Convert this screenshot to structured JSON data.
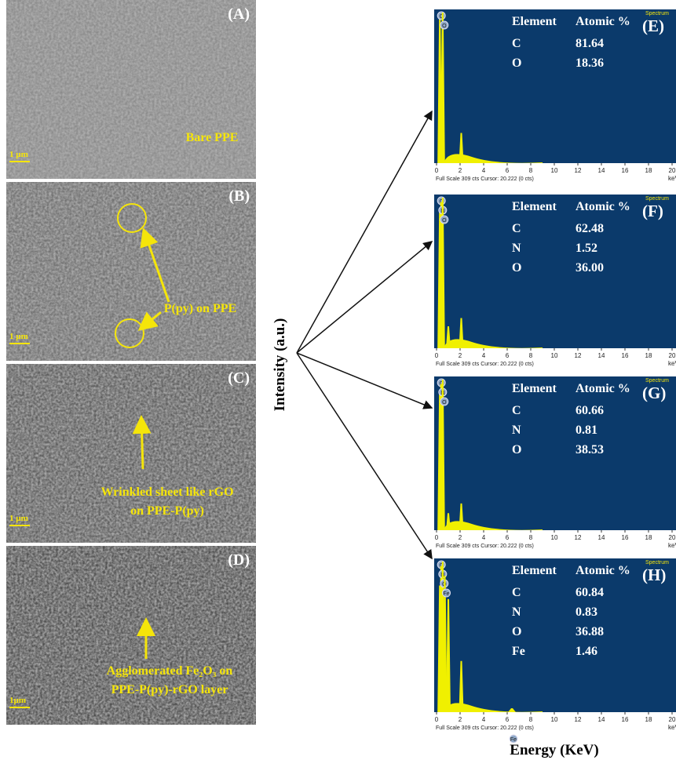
{
  "sem_panels": [
    {
      "label": "(A)",
      "scale": "1 µm",
      "caption": [
        "Bare PPE"
      ]
    },
    {
      "label": "(B)",
      "scale": "1 µm",
      "caption": [
        "P(py) on PPE"
      ]
    },
    {
      "label": "(C)",
      "scale": "1 µm",
      "caption": [
        "Wrinkled sheet like rGO",
        "on PPE-P(py)"
      ]
    },
    {
      "label": "(D)",
      "scale": "1µm",
      "caption": [
        "Agglomerated Fe₂O₃ on",
        "PPE-P(py)-rGO layer"
      ]
    }
  ],
  "y_axis_label": "Intensity (a.u.)",
  "x_axis_label": "Energy (KeV)",
  "spectrum_axis": {
    "xlim": [
      0,
      20
    ],
    "xticks": [
      0,
      2,
      4,
      6,
      8,
      10,
      12,
      14,
      16,
      18,
      20
    ],
    "unit": "keV",
    "footer": "Full Scale 309 cts Cursor: 20.222  (0 cts)",
    "tag": "Spectrum"
  },
  "spectra": [
    {
      "label": "(E)",
      "table": {
        "header": [
          "Element",
          "Atomic %"
        ],
        "rows": [
          [
            "C",
            "81.64"
          ],
          [
            "O",
            "18.36"
          ]
        ]
      },
      "peaks": [
        {
          "x": 0.28,
          "y": 300,
          "label": "C"
        },
        {
          "x": 0.52,
          "y": 309,
          "label": "O"
        },
        {
          "x": 2.1,
          "y": 62
        }
      ]
    },
    {
      "label": "(F)",
      "table": {
        "header": [
          "Element",
          "Atomic %"
        ],
        "rows": [
          [
            "C",
            "62.48"
          ],
          [
            "N",
            "1.52"
          ],
          [
            "O",
            "36.00"
          ]
        ]
      },
      "peaks": [
        {
          "x": 0.28,
          "y": 280,
          "label": "C"
        },
        {
          "x": 0.39,
          "y": 300,
          "label": "N"
        },
        {
          "x": 0.52,
          "y": 309,
          "label": "O"
        },
        {
          "x": 1.0,
          "y": 45
        },
        {
          "x": 2.1,
          "y": 62
        }
      ]
    },
    {
      "label": "(G)",
      "table": {
        "header": [
          "Element",
          "Atomic %"
        ],
        "rows": [
          [
            "C",
            "60.66"
          ],
          [
            "N",
            "0.81"
          ],
          [
            "O",
            "38.53"
          ]
        ]
      },
      "peaks": [
        {
          "x": 0.28,
          "y": 285,
          "label": "C"
        },
        {
          "x": 0.39,
          "y": 300,
          "label": "N"
        },
        {
          "x": 0.52,
          "y": 309,
          "label": "O"
        },
        {
          "x": 1.0,
          "y": 35
        },
        {
          "x": 2.1,
          "y": 55
        }
      ]
    },
    {
      "label": "(H)",
      "table": {
        "header": [
          "Element",
          "Atomic %"
        ],
        "rows": [
          [
            "C",
            "60.84"
          ],
          [
            "N",
            "0.83"
          ],
          [
            "O",
            "36.88"
          ],
          [
            "Fe",
            "1.46"
          ]
        ]
      },
      "peaks": [
        {
          "x": 0.28,
          "y": 260,
          "label": "C"
        },
        {
          "x": 0.39,
          "y": 300,
          "label": "N"
        },
        {
          "x": 0.52,
          "y": 309,
          "label": "O"
        },
        {
          "x": 0.7,
          "y": 280,
          "label": "Fe"
        },
        {
          "x": 1.0,
          "y": 232
        },
        {
          "x": 2.1,
          "y": 105
        },
        {
          "x": 6.4,
          "y": 8,
          "label": "Fe"
        }
      ]
    }
  ]
}
